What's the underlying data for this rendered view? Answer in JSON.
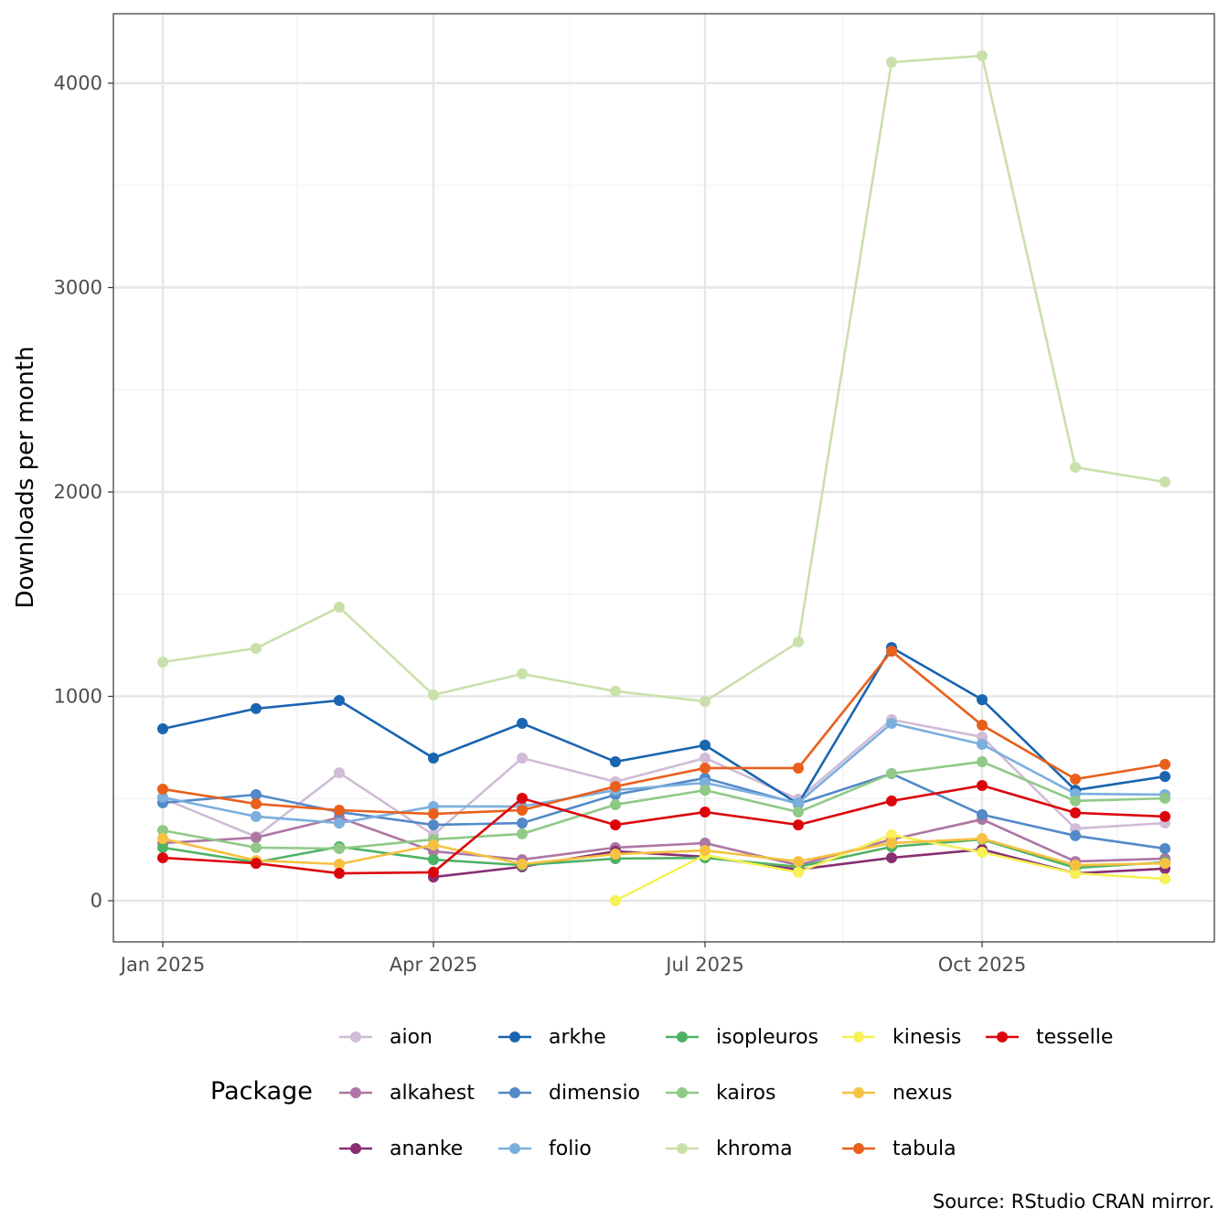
{
  "chart_data": {
    "type": "line",
    "title": "",
    "xlabel": "",
    "ylabel": "Downloads per month",
    "ylim": [
      -200,
      4340
    ],
    "yticks": [
      0,
      1000,
      2000,
      3000,
      4000
    ],
    "ytick_labels": [
      "0",
      "1000",
      "2000",
      "3000",
      "4000"
    ],
    "xticks": [
      "Jan 2025",
      "Apr 2025",
      "Jul 2025",
      "Oct 2025"
    ],
    "x": [
      "2025-01",
      "2025-02",
      "2025-03",
      "2025-04",
      "2025-05",
      "2025-06",
      "2025-07",
      "2025-08",
      "2025-09",
      "2025-10",
      "2025-11",
      "2025-12"
    ],
    "grid": true,
    "legend_title": "Package",
    "legend_position": "bottom",
    "caption": "Source: RStudio CRAN mirror.",
    "series": [
      {
        "name": "aion",
        "color": "#d1bbd7",
        "values": [
          501,
          313,
          626,
          322,
          698,
          582,
          698,
          497,
          886,
          801,
          353,
          380
        ]
      },
      {
        "name": "alkahest",
        "color": "#ae76a3",
        "values": [
          282,
          309,
          407,
          242,
          201,
          260,
          282,
          174,
          300,
          398,
          192,
          206
        ]
      },
      {
        "name": "ananke",
        "color": "#882e72",
        "values": [
          null,
          null,
          null,
          116,
          166,
          242,
          215,
          152,
          210,
          251,
          134,
          157
        ]
      },
      {
        "name": "arkhe",
        "color": "#1965b0",
        "values": [
          841,
          940,
          980,
          698,
          868,
          680,
          761,
          474,
          1239,
          984,
          541,
          608
        ]
      },
      {
        "name": "dimensio",
        "color": "#5289c7",
        "values": [
          479,
          519,
          434,
          371,
          380,
          519,
          600,
          474,
          622,
          421,
          318,
          255
        ]
      },
      {
        "name": "folio",
        "color": "#7bafde",
        "values": [
          506,
          412,
          380,
          461,
          461,
          541,
          577,
          479,
          868,
          765,
          523,
          519
        ]
      },
      {
        "name": "isopleuros",
        "color": "#4eb265",
        "values": [
          260,
          188,
          264,
          201,
          174,
          206,
          210,
          166,
          264,
          300,
          161,
          188
        ]
      },
      {
        "name": "kairos",
        "color": "#90c987",
        "values": [
          344,
          260,
          255,
          300,
          327,
          470,
          541,
          434,
          622,
          680,
          488,
          501
        ]
      },
      {
        "name": "khroma",
        "color": "#cae0ab",
        "values": [
          1168,
          1235,
          1436,
          1007,
          1110,
          1025,
          975,
          1266,
          4103,
          4134,
          2121,
          2049
        ]
      },
      {
        "name": "kinesis",
        "color": "#f7f056",
        "values": [
          null,
          null,
          null,
          null,
          null,
          0,
          224,
          139,
          322,
          237,
          134,
          107
        ]
      },
      {
        "name": "nexus",
        "color": "#f6c141",
        "values": [
          304,
          197,
          179,
          273,
          179,
          228,
          246,
          192,
          282,
          304,
          174,
          183
        ]
      },
      {
        "name": "tabula",
        "color": "#e8601c",
        "values": [
          546,
          474,
          443,
          425,
          443,
          559,
          649,
          649,
          1221,
          859,
          595,
          667
        ]
      },
      {
        "name": "tesselle",
        "color": "#dc050c",
        "values": [
          210,
          183,
          134,
          139,
          501,
          371,
          434,
          371,
          488,
          564,
          430,
          412
        ]
      }
    ]
  }
}
